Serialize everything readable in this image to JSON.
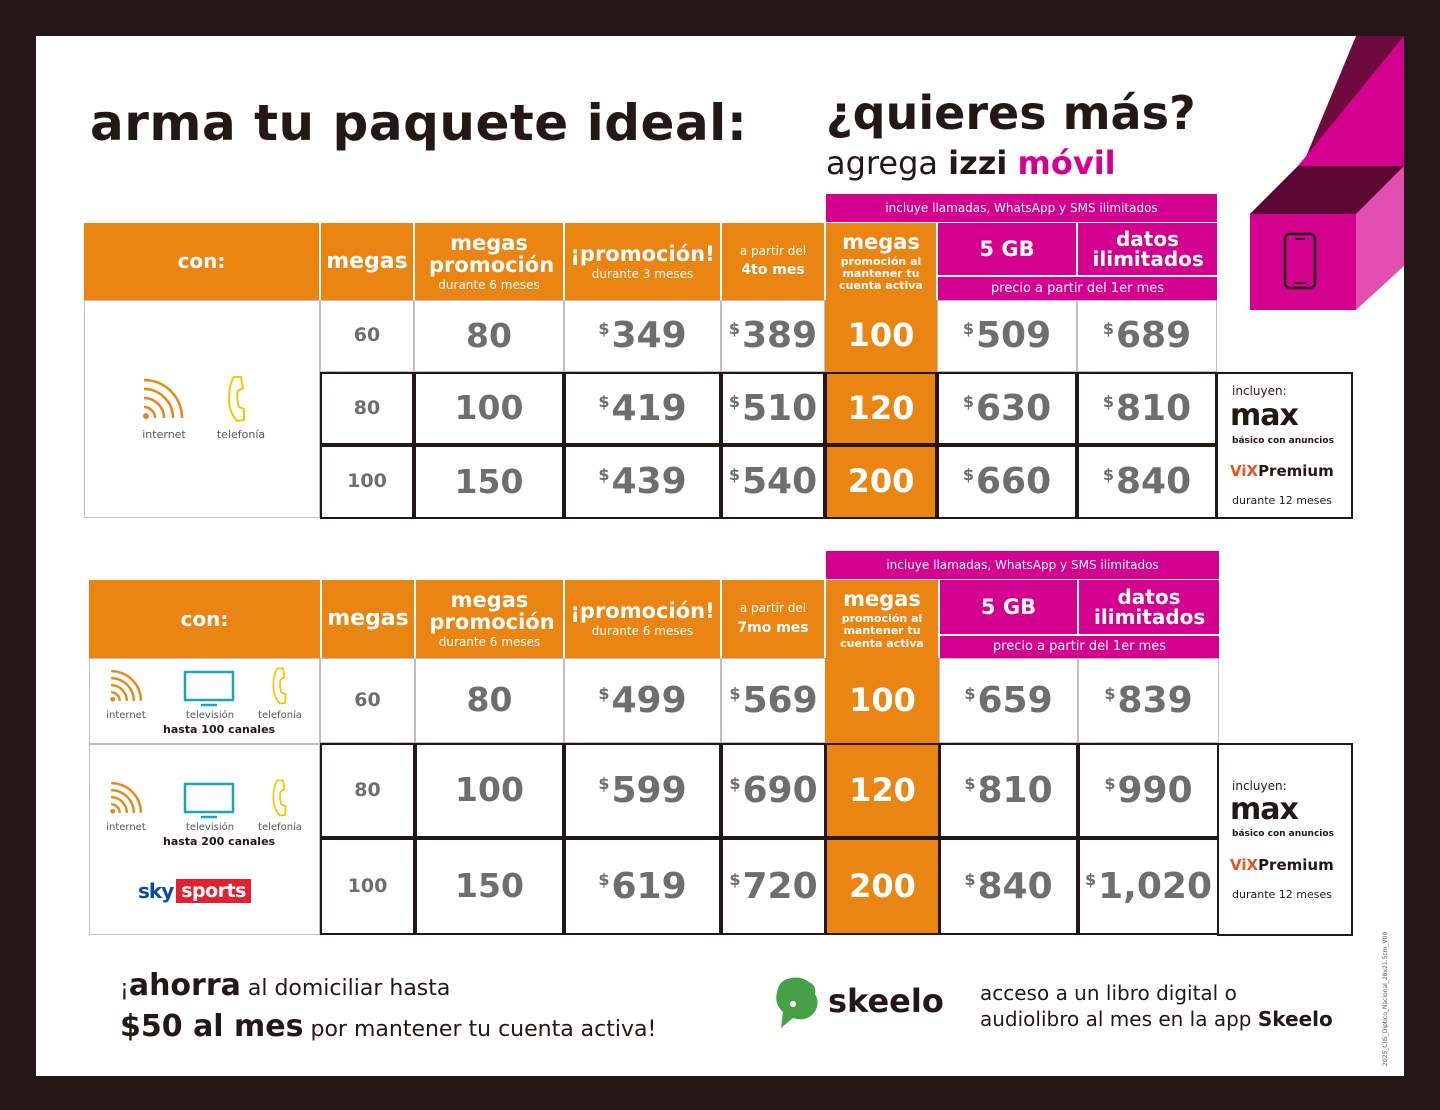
{
  "title": "arma tu paquete ideal:",
  "more": {
    "title": "¿quieres más?",
    "sub_prefix": "agrega",
    "sub_brand": "izzi",
    "sub_product": "móvil"
  },
  "headers": {
    "con": "con:",
    "megas": "megas",
    "megas_promo": "megas promoción",
    "promo": "¡promoción!",
    "a_partir": "a partir del",
    "movil_note": "incluye llamadas, WhatsApp y SMS ilimitados",
    "megas_movil": "megas",
    "megas_movil_sub": "promoción al mantener tu cuenta activa",
    "gb5": "5 GB",
    "datos": "datos ilimitados",
    "precio_note": "precio a partir del 1er mes"
  },
  "table1": {
    "megas_promo_sub": "durante 6 meses",
    "promo_sub": "durante 3 meses",
    "a_partir_sub": "4to mes",
    "icons": [
      "internet",
      "telefonía"
    ],
    "rows": [
      {
        "megas": "60",
        "promo_megas": "80",
        "promo_price": "349",
        "after": "389",
        "movil_megas": "100",
        "gb5": "509",
        "ilim": "689"
      },
      {
        "megas": "80",
        "promo_megas": "100",
        "promo_price": "419",
        "after": "510",
        "movil_megas": "120",
        "gb5": "630",
        "ilim": "810"
      },
      {
        "megas": "100",
        "promo_megas": "150",
        "promo_price": "439",
        "after": "540",
        "movil_megas": "200",
        "gb5": "660",
        "ilim": "840"
      }
    ]
  },
  "table2": {
    "megas_promo_sub": "durante 6 meses",
    "promo_sub": "durante 6 meses",
    "a_partir_sub": "7mo mes",
    "pkg1": {
      "icons": [
        "internet",
        "televisión",
        "telefonía"
      ],
      "channels": "hasta 100 canales"
    },
    "pkg2": {
      "icons": [
        "internet",
        "televisión",
        "telefonía"
      ],
      "channels": "hasta 200 canales",
      "sky": "sky",
      "sports": "sports"
    },
    "rows": [
      {
        "megas": "60",
        "promo_megas": "80",
        "promo_price": "499",
        "after": "569",
        "movil_megas": "100",
        "gb5": "659",
        "ilim": "839"
      },
      {
        "megas": "80",
        "promo_megas": "100",
        "promo_price": "599",
        "after": "690",
        "movil_megas": "120",
        "gb5": "810",
        "ilim": "990"
      },
      {
        "megas": "100",
        "promo_megas": "150",
        "promo_price": "619",
        "after": "720",
        "movil_megas": "200",
        "gb5": "840",
        "ilim": "1,020"
      }
    ]
  },
  "included": {
    "label": "incluyen:",
    "max": "max",
    "max_sub": "básico con anuncios",
    "vix": "ViX",
    "vix_premium": "Premium",
    "duration": "durante 12 meses"
  },
  "currency": "$",
  "footer": {
    "ahorra_pre": "¡",
    "ahorra": "ahorra",
    "ahorra_rest": " al domiciliar hasta",
    "amount": "$50 al mes",
    "amount_rest": " por mantener tu cuenta activa!",
    "skeelo": "skeelo",
    "skeelo_line1": "acceso a un libro digital o",
    "skeelo_line2": "audiolibro al mes en la app ",
    "skeelo_bold": "Skeelo"
  },
  "side_code": "2025_CIIS_Diptico_Nacional_28x21.5cm_V09",
  "colors": {
    "orange": "#ea8413",
    "magenta": "#d4008f",
    "dark": "#231815",
    "gray": "#6d6e70"
  }
}
